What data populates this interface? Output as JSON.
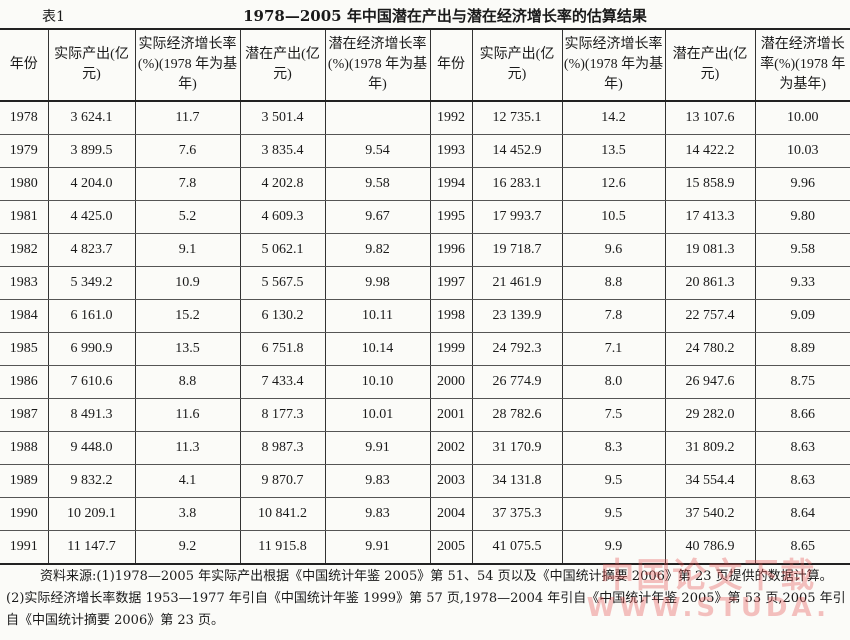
{
  "table_label": "表1",
  "title": "1978—2005 年中国潜在产出与潜在经济增长率的估算结果",
  "headers": [
    "年份",
    "实际产出(亿元)",
    "实际经济增长率(%)(1978 年为基年)",
    "潜在产出(亿元)",
    "潜在经济增长率(%)(1978 年为基年)",
    "年份",
    "实际产出(亿元)",
    "实际经济增长率(%)(1978 年为基年)",
    "潜在产出(亿元)",
    "潜在经济增长率(%)(1978 年为基年)"
  ],
  "rows": [
    [
      "1978",
      "3 624.1",
      "11.7",
      "3 501.4",
      "",
      "1992",
      "12 735.1",
      "14.2",
      "13 107.6",
      "10.00"
    ],
    [
      "1979",
      "3 899.5",
      "7.6",
      "3 835.4",
      "9.54",
      "1993",
      "14 452.9",
      "13.5",
      "14 422.2",
      "10.03"
    ],
    [
      "1980",
      "4 204.0",
      "7.8",
      "4 202.8",
      "9.58",
      "1994",
      "16 283.1",
      "12.6",
      "15 858.9",
      "9.96"
    ],
    [
      "1981",
      "4 425.0",
      "5.2",
      "4 609.3",
      "9.67",
      "1995",
      "17 993.7",
      "10.5",
      "17 413.3",
      "9.80"
    ],
    [
      "1982",
      "4 823.7",
      "9.1",
      "5 062.1",
      "9.82",
      "1996",
      "19 718.7",
      "9.6",
      "19 081.3",
      "9.58"
    ],
    [
      "1983",
      "5 349.2",
      "10.9",
      "5 567.5",
      "9.98",
      "1997",
      "21 461.9",
      "8.8",
      "20 861.3",
      "9.33"
    ],
    [
      "1984",
      "6 161.0",
      "15.2",
      "6 130.2",
      "10.11",
      "1998",
      "23 139.9",
      "7.8",
      "22 757.4",
      "9.09"
    ],
    [
      "1985",
      "6 990.9",
      "13.5",
      "6 751.8",
      "10.14",
      "1999",
      "24 792.3",
      "7.1",
      "24 780.2",
      "8.89"
    ],
    [
      "1986",
      "7 610.6",
      "8.8",
      "7 433.4",
      "10.10",
      "2000",
      "26 774.9",
      "8.0",
      "26 947.6",
      "8.75"
    ],
    [
      "1987",
      "8 491.3",
      "11.6",
      "8 177.3",
      "10.01",
      "2001",
      "28 782.6",
      "7.5",
      "29 282.0",
      "8.66"
    ],
    [
      "1988",
      "9 448.0",
      "11.3",
      "8 987.3",
      "9.91",
      "2002",
      "31 170.9",
      "8.3",
      "31 809.2",
      "8.63"
    ],
    [
      "1989",
      "9 832.2",
      "4.1",
      "9 870.7",
      "9.83",
      "2003",
      "34 131.8",
      "9.5",
      "34 554.4",
      "8.63"
    ],
    [
      "1990",
      "10 209.1",
      "3.8",
      "10 841.2",
      "9.83",
      "2004",
      "37 375.3",
      "9.5",
      "37 540.2",
      "8.64"
    ],
    [
      "1991",
      "11 147.7",
      "9.2",
      "11 915.8",
      "9.91",
      "2005",
      "41 075.5",
      "9.9",
      "40 786.9",
      "8.65"
    ]
  ],
  "notes": [
    "资料来源:(1)1978—2005 年实际产出根据《中国统计年鉴 2005》第 51、54 页以及《中国统计摘要 2006》第 23 页提供的数据计算。",
    "(2)实际经济增长率数据 1953—1977 年引自《中国统计年鉴 1999》第 57 页,1978—2004 年引自《中国统计年鉴 2005》第 53 页,2005 年引自《中国统计摘要 2006》第 23 页。"
  ],
  "watermark": {
    "line1": "中国论文下载",
    "line2": "WWW.STUDA.",
    "color": "#e65050"
  }
}
